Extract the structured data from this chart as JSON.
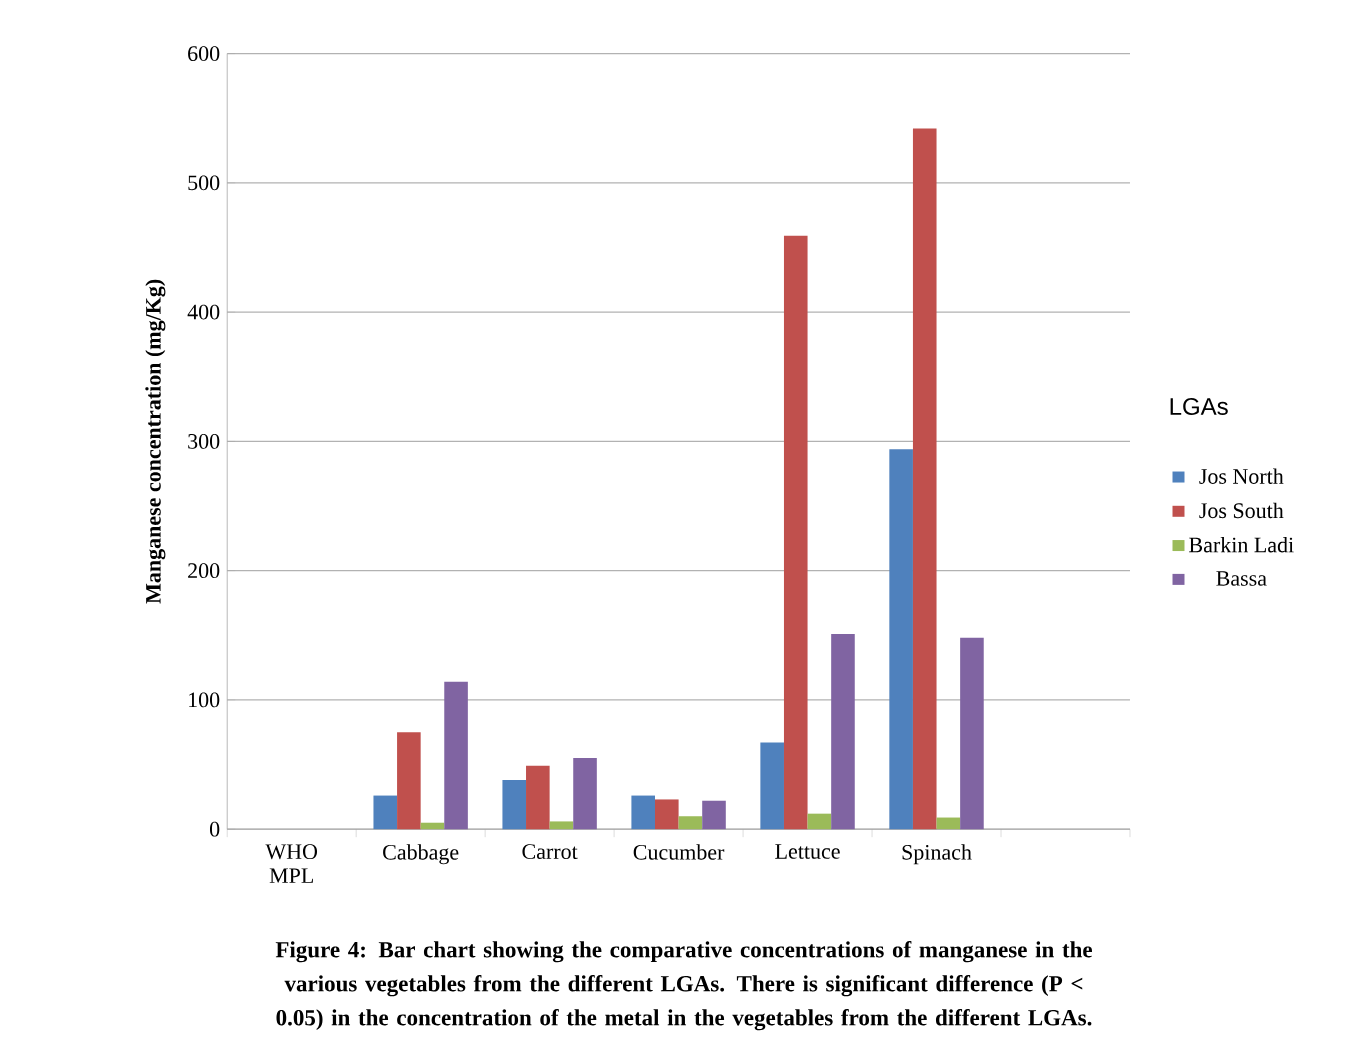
{
  "chart_data": {
    "type": "bar",
    "ylabel": "Manganese concentration (mg/Kg)",
    "legend_title": "LGAs",
    "annotations": [
      "Figure 4: Bar chart showing the comparative concentrations of manganese in the various vegetables from the different  LGAs. There is significant difference (P < 0.05) in the concentration of the metal in the vegetables from the different LGAs."
    ],
    "categories": [
      "WHO MPL",
      "Cabbage",
      "Carrot",
      "Cucumber",
      "Lettuce",
      "Spinach",
      null
    ],
    "series": [
      {
        "name": "Jos North",
        "color": "#4f81bd",
        "values": [
          null,
          26,
          38,
          26,
          67,
          294,
          null
        ]
      },
      {
        "name": "Jos South",
        "color": "#c0504d",
        "values": [
          null,
          75,
          49,
          23,
          459,
          542,
          null
        ]
      },
      {
        "name": "Barkin Ladi",
        "color": "#9bbb59",
        "values": [
          null,
          5,
          6,
          10,
          12,
          9,
          null
        ]
      },
      {
        "name": "Bassa",
        "color": "#8064a2",
        "values": [
          null,
          114,
          55,
          22,
          151,
          148,
          null
        ]
      }
    ],
    "ylim": [
      0,
      600
    ],
    "yticks": [
      0,
      100,
      200,
      300,
      400,
      500,
      600
    ],
    "grid": "y",
    "legend": "right"
  }
}
